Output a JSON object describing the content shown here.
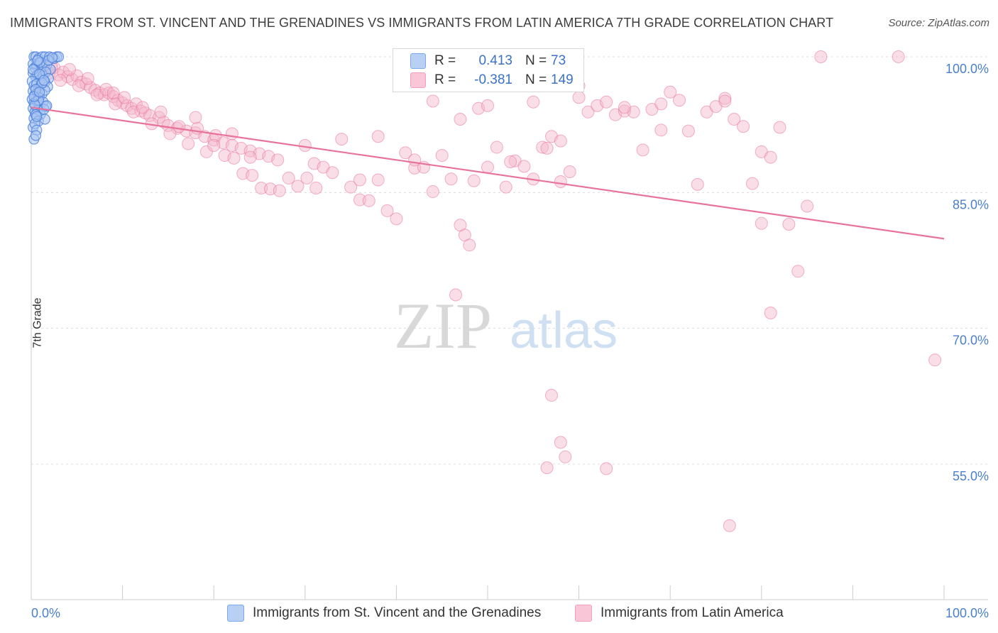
{
  "title": "IMMIGRANTS FROM ST. VINCENT AND THE GRENADINES VS IMMIGRANTS FROM LATIN AMERICA 7TH GRADE CORRELATION CHART",
  "source": "Source: ZipAtlas.com",
  "watermark": {
    "zip": "ZIP",
    "atlas": "atlas"
  },
  "legend": {
    "rows": [
      {
        "r_label": "R =",
        "r_value": "0.413",
        "n_label": "N =",
        "n_value": "73",
        "color": "#7aa8e8"
      },
      {
        "r_label": "R =",
        "r_value": "-0.381",
        "n_label": "N =",
        "n_value": "149",
        "color": "#f3a0bd"
      }
    ]
  },
  "bottom_legend": {
    "series1": "Immigrants from St. Vincent and the Grenadines",
    "series2": "Immigrants from Latin America"
  },
  "chart_data": {
    "type": "scatter",
    "title": "IMMIGRANTS FROM ST. VINCENT AND THE GRENADINES VS IMMIGRANTS FROM LATIN AMERICA 7TH GRADE CORRELATION CHART",
    "xlabel": "",
    "ylabel": "7th Grade",
    "x_tick_labels": [
      "0.0%",
      "100.0%"
    ],
    "y_tick_labels": [
      "100.0%",
      "85.0%",
      "70.0%",
      "55.0%"
    ],
    "y_ticks": [
      100,
      85,
      70,
      55
    ],
    "xlim": [
      0,
      100
    ],
    "ylim": [
      40,
      101
    ],
    "grid": "horizontal dashed",
    "series": [
      {
        "name": "Immigrants from St. Vincent and the Grenadines",
        "color": "#4a7fdc",
        "fill": "#a9c4f0",
        "points": [
          [
            0.3,
            100
          ],
          [
            0.5,
            100
          ],
          [
            0.8,
            99.8
          ],
          [
            1.2,
            100
          ],
          [
            1.5,
            100
          ],
          [
            2.0,
            100
          ],
          [
            2.5,
            99.8
          ],
          [
            2.8,
            100
          ],
          [
            3.0,
            100
          ],
          [
            0.2,
            99.2
          ],
          [
            0.4,
            98.8
          ],
          [
            0.6,
            99
          ],
          [
            0.9,
            99.3
          ],
          [
            1.1,
            98.5
          ],
          [
            1.4,
            98.9
          ],
          [
            1.7,
            99.1
          ],
          [
            2.1,
            98.6
          ],
          [
            0.2,
            98.2
          ],
          [
            0.5,
            97.8
          ],
          [
            0.7,
            98
          ],
          [
            1.0,
            97.5
          ],
          [
            1.3,
            97.9
          ],
          [
            1.6,
            98.3
          ],
          [
            1.9,
            97.6
          ],
          [
            0.1,
            97.3
          ],
          [
            0.3,
            96.8
          ],
          [
            0.6,
            97
          ],
          [
            0.8,
            96.5
          ],
          [
            1.1,
            96.9
          ],
          [
            1.5,
            97.2
          ],
          [
            1.8,
            96.7
          ],
          [
            0.2,
            96.2
          ],
          [
            0.4,
            95.8
          ],
          [
            0.7,
            96
          ],
          [
            0.9,
            95.5
          ],
          [
            1.2,
            95.9
          ],
          [
            1.5,
            96.3
          ],
          [
            0.1,
            95.3
          ],
          [
            0.3,
            94.9
          ],
          [
            0.6,
            95.1
          ],
          [
            0.9,
            94.6
          ],
          [
            1.3,
            95
          ],
          [
            1.6,
            94.5
          ],
          [
            0.2,
            94.3
          ],
          [
            0.4,
            93.9
          ],
          [
            0.7,
            94.1
          ],
          [
            1.0,
            93.6
          ],
          [
            1.4,
            94.2
          ],
          [
            1.7,
            94.6
          ],
          [
            0.3,
            93.2
          ],
          [
            0.5,
            93.6
          ],
          [
            0.8,
            92.9
          ],
          [
            1.5,
            93.1
          ],
          [
            0.2,
            92.2
          ],
          [
            0.4,
            92.6
          ],
          [
            0.6,
            91.9
          ],
          [
            0.3,
            90.9
          ],
          [
            0.5,
            91.3
          ],
          [
            0.2,
            98.6
          ],
          [
            0.9,
            98.1
          ],
          [
            1.2,
            97.1
          ],
          [
            0.5,
            96.4
          ],
          [
            0.8,
            95.2
          ],
          [
            0.4,
            94.7
          ],
          [
            0.6,
            93.4
          ],
          [
            1.0,
            99.4
          ],
          [
            1.9,
            99.6
          ],
          [
            2.3,
            99.9
          ],
          [
            0.7,
            99.6
          ],
          [
            1.4,
            97.4
          ],
          [
            0.3,
            95.6
          ],
          [
            0.9,
            96.1
          ]
        ]
      },
      {
        "name": "Immigrants from Latin America",
        "color": "#e8739a",
        "fill": "#f5b5ca",
        "points": [
          [
            1.0,
            99
          ],
          [
            1.5,
            98.5
          ],
          [
            2,
            98.2
          ],
          [
            2.5,
            98.8
          ],
          [
            3,
            98
          ],
          [
            3.5,
            98.3
          ],
          [
            4,
            97.8
          ],
          [
            4.5,
            97.5
          ],
          [
            5,
            97.9
          ],
          [
            5.5,
            97.2
          ],
          [
            6,
            97
          ],
          [
            6.5,
            96.6
          ],
          [
            7,
            96.3
          ],
          [
            7.5,
            96
          ],
          [
            8,
            95.8
          ],
          [
            8.5,
            96
          ],
          [
            9,
            95.6
          ],
          [
            9.5,
            95.2
          ],
          [
            10,
            94.9
          ],
          [
            10.5,
            94.6
          ],
          [
            11,
            94.3
          ],
          [
            11.5,
            94.8
          ],
          [
            12,
            94
          ],
          [
            12.5,
            93.8
          ],
          [
            13,
            93.5
          ],
          [
            14,
            93.3
          ],
          [
            14.5,
            92.8
          ],
          [
            15,
            92.4
          ],
          [
            16,
            92.1
          ],
          [
            17,
            91.8
          ],
          [
            18,
            91.6
          ],
          [
            19,
            91.2
          ],
          [
            20,
            90.8
          ],
          [
            21,
            90.5
          ],
          [
            22,
            90.2
          ],
          [
            23,
            89.9
          ],
          [
            24,
            89.6
          ],
          [
            25,
            89.3
          ],
          [
            26,
            89
          ],
          [
            27,
            88.6
          ],
          [
            2.2,
            98.9
          ],
          [
            3.2,
            97.4
          ],
          [
            4.2,
            98.6
          ],
          [
            5.2,
            96.8
          ],
          [
            6.2,
            97.6
          ],
          [
            7.2,
            95.8
          ],
          [
            8.2,
            96.4
          ],
          [
            9.2,
            94.8
          ],
          [
            10.2,
            95.5
          ],
          [
            11.2,
            93.9
          ],
          [
            12.2,
            94.4
          ],
          [
            13.2,
            92.6
          ],
          [
            14.2,
            93.9
          ],
          [
            15.2,
            91.5
          ],
          [
            16.2,
            92.3
          ],
          [
            17.2,
            90.4
          ],
          [
            18.2,
            92.1
          ],
          [
            19.2,
            89.5
          ],
          [
            20.2,
            91.3
          ],
          [
            21.2,
            89.1
          ],
          [
            22.2,
            88.8
          ],
          [
            23.2,
            87.1
          ],
          [
            24.2,
            86.9
          ],
          [
            25.2,
            85.5
          ],
          [
            26.2,
            85.4
          ],
          [
            27.2,
            85.2
          ],
          [
            28.2,
            86.6
          ],
          [
            29.2,
            85.7
          ],
          [
            30.2,
            86.6
          ],
          [
            31.2,
            85.5
          ],
          [
            30,
            90.2
          ],
          [
            31,
            88.2
          ],
          [
            32,
            87.8
          ],
          [
            33,
            87.2
          ],
          [
            34,
            90.9
          ],
          [
            35,
            85.6
          ],
          [
            36,
            84.2
          ],
          [
            37,
            84.1
          ],
          [
            38,
            86.4
          ],
          [
            39,
            83
          ],
          [
            40,
            82.1
          ],
          [
            41,
            89.4
          ],
          [
            42,
            87.7
          ],
          [
            43,
            87.8
          ],
          [
            44,
            85.1
          ],
          [
            45,
            89.1
          ],
          [
            46,
            86.5
          ],
          [
            47,
            81.4
          ],
          [
            47.5,
            80.3
          ],
          [
            48.5,
            86.3
          ],
          [
            49,
            94.3
          ],
          [
            50,
            87.8
          ],
          [
            51,
            90
          ],
          [
            52,
            85.6
          ],
          [
            53,
            88.5
          ],
          [
            54,
            87.9
          ],
          [
            55,
            86.5
          ],
          [
            56,
            90
          ],
          [
            57,
            91.2
          ],
          [
            58,
            90.7
          ],
          [
            59,
            87.3
          ],
          [
            60,
            96.8
          ],
          [
            61,
            93.9
          ],
          [
            62,
            94.6
          ],
          [
            63,
            95
          ],
          [
            64,
            93.6
          ],
          [
            65,
            94
          ],
          [
            66,
            93.9
          ],
          [
            67,
            89.7
          ],
          [
            68,
            94.2
          ],
          [
            69,
            94.8
          ],
          [
            70,
            96.1
          ],
          [
            71,
            95.2
          ],
          [
            72,
            91.8
          ],
          [
            73,
            85.9
          ],
          [
            74,
            93.9
          ],
          [
            75,
            94.5
          ],
          [
            76,
            95.4
          ],
          [
            77,
            93.1
          ],
          [
            78,
            92.3
          ],
          [
            79,
            86
          ],
          [
            80,
            89.5
          ],
          [
            81,
            88.9
          ],
          [
            82,
            92.2
          ],
          [
            83,
            81.5
          ],
          [
            84,
            76.3
          ],
          [
            85,
            83.5
          ],
          [
            86.5,
            100
          ],
          [
            95,
            100
          ],
          [
            99,
            66.5
          ],
          [
            47,
            93.1
          ],
          [
            48,
            79.2
          ],
          [
            46.5,
            73.7
          ],
          [
            50,
            94.6
          ],
          [
            52.5,
            88.4
          ],
          [
            55,
            95
          ],
          [
            56.5,
            89.9
          ],
          [
            58,
            86.2
          ],
          [
            60,
            95.5
          ],
          [
            65,
            94.4
          ],
          [
            69,
            91.9
          ],
          [
            76,
            95.1
          ],
          [
            80,
            81.6
          ],
          [
            81,
            71.7
          ],
          [
            57,
            62.6
          ],
          [
            58,
            57.4
          ],
          [
            58.5,
            55.8
          ],
          [
            56.5,
            54.6
          ],
          [
            63,
            54.5
          ],
          [
            76.5,
            48.2
          ],
          [
            44,
            95.1
          ],
          [
            42,
            88.6
          ],
          [
            38,
            91.2
          ],
          [
            36,
            86.4
          ],
          [
            20,
            90.2
          ],
          [
            22,
            91.5
          ],
          [
            24,
            88.9
          ],
          [
            18,
            93.3
          ],
          [
            9,
            96
          ]
        ]
      }
    ],
    "trend_lines": [
      {
        "series": "Immigrants from Latin America",
        "x": [
          0,
          100
        ],
        "y": [
          94.4,
          79.9
        ],
        "color": "#e8739a"
      }
    ]
  }
}
